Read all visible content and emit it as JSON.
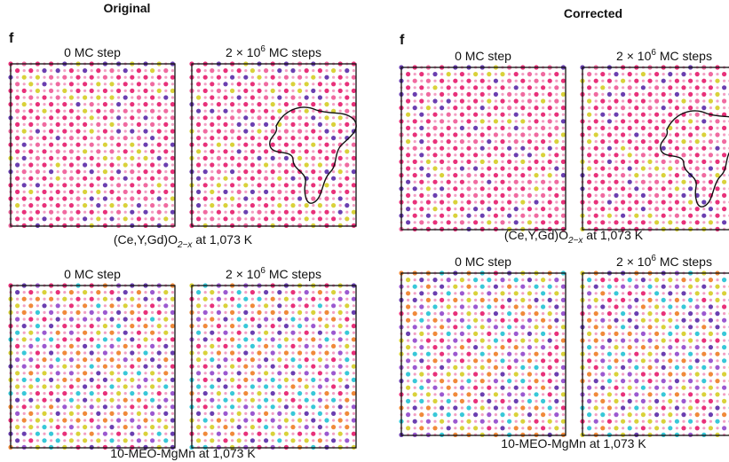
{
  "original": {
    "heading": "Original",
    "label": "f",
    "top": {
      "panels": [
        {
          "title": {
            "base": "0 MC step"
          }
        },
        {
          "title": {
            "base": "2 × 10",
            "sup": "6",
            "rest": " MC steps"
          }
        }
      ],
      "caption": {
        "base": "(Ce,Y,Gd)O",
        "sub": "2−x",
        "rest": " at 1,073 K"
      }
    },
    "bottom": {
      "panels": [
        {
          "title": {
            "base": "0 MC step"
          }
        },
        {
          "title": {
            "base": "2 × 10",
            "sup": "6",
            "rest": " MC steps"
          }
        }
      ],
      "caption": {
        "base": "10-MEO-MgMn at 1,073 K"
      }
    }
  },
  "corrected": {
    "heading": "Corrected",
    "label": "f",
    "top": {
      "panels": [
        {
          "title": {
            "base": "0 MC step"
          }
        },
        {
          "title": {
            "base": "2 × 10",
            "sup": "6",
            "rest": " MC steps"
          }
        }
      ],
      "caption": {
        "base": "(Ce,Y,Gd)O",
        "sub": "2−x",
        "rest": " at 1,073 K"
      }
    },
    "bottom": {
      "panels": [
        {
          "title": {
            "base": "0 MC step"
          }
        },
        {
          "title": {
            "base": "2 × 10",
            "sup": "6",
            "rest": " MC steps"
          }
        }
      ],
      "caption": {
        "base": "10-MEO-MgMn at 1,073 K"
      }
    }
  }
}
